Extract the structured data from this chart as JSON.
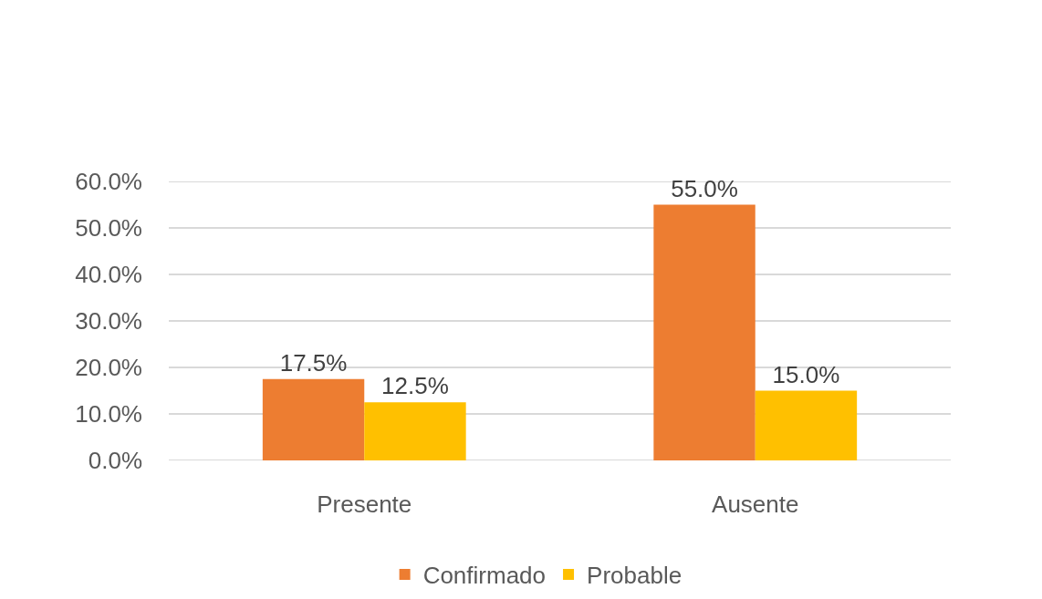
{
  "chart_data": {
    "type": "bar",
    "categories": [
      "Presente",
      "Ausente"
    ],
    "series": [
      {
        "name": "Confirmado",
        "color": "#ed7d31",
        "values": [
          17.5,
          55.0
        ],
        "value_labels": [
          "17.5%",
          "55.0%"
        ]
      },
      {
        "name": "Probable",
        "color": "#ffc000",
        "values": [
          12.5,
          15.0
        ],
        "value_labels": [
          "12.5%",
          "15.0%"
        ]
      }
    ],
    "ylim": [
      0,
      60
    ],
    "yticks": [
      {
        "value": 0,
        "label": "0.0%"
      },
      {
        "value": 10,
        "label": "10.0%"
      },
      {
        "value": 20,
        "label": "20.0%"
      },
      {
        "value": 30,
        "label": "30.0%"
      },
      {
        "value": 40,
        "label": "40.0%"
      },
      {
        "value": 50,
        "label": "50.0%"
      },
      {
        "value": 60,
        "label": "60.0%"
      }
    ],
    "grid": "y",
    "legend": "bottom"
  }
}
